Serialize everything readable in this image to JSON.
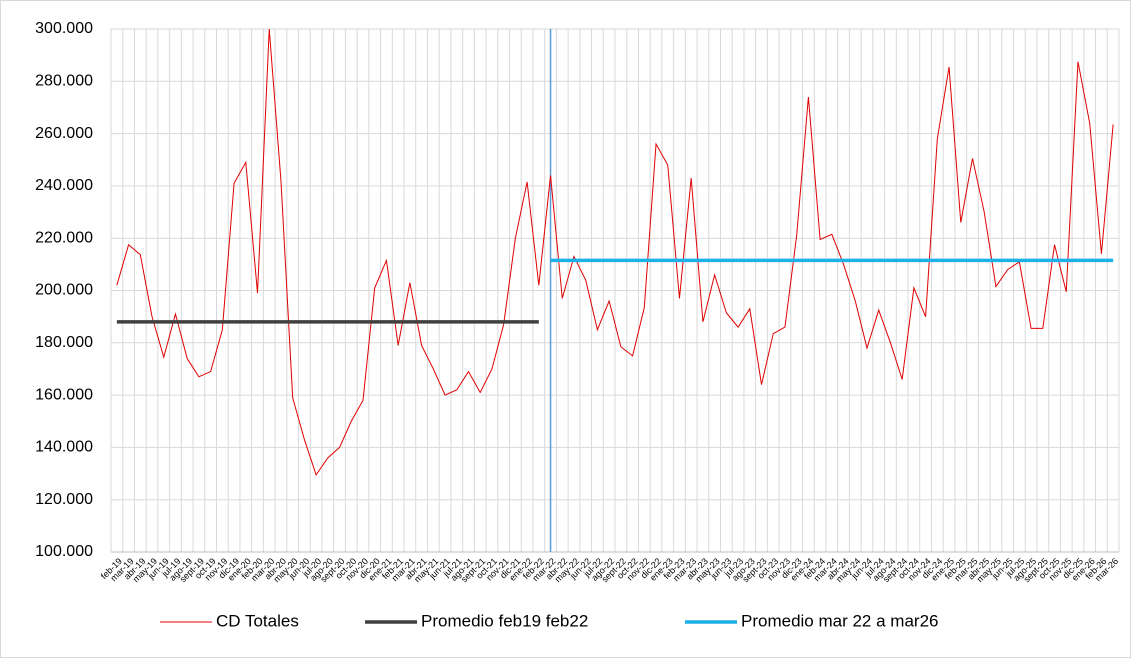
{
  "chart_data": {
    "type": "line",
    "categories": [
      "feb-19",
      "mar-19",
      "abr-19",
      "may-19",
      "jun-19",
      "jul-19",
      "ago-19",
      "sept-19",
      "oct-19",
      "nov-19",
      "dic-19",
      "ene-20",
      "feb-20",
      "mar-20",
      "abr-20",
      "may-20",
      "jun-20",
      "jul-20",
      "ago-20",
      "sept-20",
      "oct-20",
      "nov-20",
      "dic-20",
      "ene-21",
      "feb-21",
      "mar-21",
      "abr-21",
      "may-21",
      "jun-21",
      "jul-21",
      "ago-21",
      "sept-21",
      "oct-21",
      "nov-21",
      "dic-21",
      "ene-22",
      "feb-22",
      "mar-22",
      "abr-22",
      "may-22",
      "jun-22",
      "jul-22",
      "ago-22",
      "sept-22",
      "oct-22",
      "nov-22",
      "dic-22",
      "ene-23",
      "feb-23",
      "mar-23",
      "abr-23",
      "may-23",
      "jun-23",
      "jul-23",
      "ago-23",
      "sept-23",
      "oct-23",
      "nov-23",
      "dic-23",
      "ene-24",
      "feb-24",
      "mar-24",
      "abr-24",
      "may-24",
      "jun-24",
      "jul-24",
      "ago-24",
      "sept-24",
      "oct-24",
      "nov-24",
      "dic-24",
      "ene-25",
      "feb-25",
      "mar-25",
      "abr-25",
      "may-25",
      "jun-25",
      "jul-25",
      "ago-25",
      "sept-25",
      "oct-25",
      "nov-25",
      "dic-25",
      "ene-26",
      "feb-26",
      "mar-26"
    ],
    "series": [
      {
        "name": "CD Totales",
        "color": "#e00000",
        "values": [
          202000,
          217500,
          213700,
          190000,
          174500,
          191000,
          174000,
          167000,
          169000,
          185000,
          241000,
          249000,
          199000,
          300000,
          242000,
          159000,
          143000,
          129500,
          136000,
          140000,
          150000,
          158000,
          201000,
          211500,
          179000,
          203000,
          179000,
          170000,
          160000,
          162000,
          169000,
          161000,
          170000,
          187000,
          220000,
          241500,
          202000,
          244000,
          197000,
          213000,
          204000,
          185000,
          196000,
          178500,
          175000,
          193500,
          256000,
          248000,
          197000,
          243000,
          188000,
          206000,
          191500,
          186000,
          193000,
          164000,
          183500,
          186000,
          221000,
          274000,
          219500,
          221500,
          210000,
          196000,
          178000,
          192500,
          180000,
          166000,
          201000,
          190000,
          258000,
          285500,
          226000,
          250500,
          230000,
          201500,
          208000,
          211000,
          185500,
          185500,
          217500,
          199500,
          287500,
          264000,
          214000,
          263500
        ]
      },
      {
        "name": "Promedio feb19 feb22",
        "color": "#404040",
        "values": [
          188000,
          188000,
          188000,
          188000,
          188000,
          188000,
          188000,
          188000,
          188000,
          188000,
          188000,
          188000,
          188000,
          188000,
          188000,
          188000,
          188000,
          188000,
          188000,
          188000,
          188000,
          188000,
          188000,
          188000,
          188000,
          188000,
          188000,
          188000,
          188000,
          188000,
          188000,
          188000,
          188000,
          188000,
          188000,
          188000,
          188000,
          null,
          null,
          null,
          null,
          null,
          null,
          null,
          null,
          null,
          null,
          null,
          null,
          null,
          null,
          null,
          null,
          null,
          null,
          null,
          null,
          null,
          null,
          null,
          null,
          null,
          null,
          null,
          null,
          null,
          null,
          null,
          null,
          null,
          null,
          null,
          null,
          null,
          null,
          null,
          null,
          null,
          null,
          null,
          null,
          null,
          null,
          null,
          null,
          null
        ]
      },
      {
        "name": "Promedio mar 22 a mar26",
        "color": "#1cb0e8",
        "values": [
          null,
          null,
          null,
          null,
          null,
          null,
          null,
          null,
          null,
          null,
          null,
          null,
          null,
          null,
          null,
          null,
          null,
          null,
          null,
          null,
          null,
          null,
          null,
          null,
          null,
          null,
          null,
          null,
          null,
          null,
          null,
          null,
          null,
          null,
          null,
          null,
          null,
          211500,
          211500,
          211500,
          211500,
          211500,
          211500,
          211500,
          211500,
          211500,
          211500,
          211500,
          211500,
          211500,
          211500,
          211500,
          211500,
          211500,
          211500,
          211500,
          211500,
          211500,
          211500,
          211500,
          211500,
          211500,
          211500,
          211500,
          211500,
          211500,
          211500,
          211500,
          211500,
          211500,
          211500,
          211500,
          211500,
          211500,
          211500,
          211500,
          211500,
          211500,
          211500,
          211500,
          211500,
          211500,
          211500,
          211500,
          211500,
          211500
        ]
      }
    ],
    "ylim": [
      100000,
      300000
    ],
    "yticks": [
      {
        "value": 100000,
        "label": "100.000"
      },
      {
        "value": 120000,
        "label": "120.000"
      },
      {
        "value": 140000,
        "label": "140.000"
      },
      {
        "value": 160000,
        "label": "160.000"
      },
      {
        "value": 180000,
        "label": "180.000"
      },
      {
        "value": 200000,
        "label": "200.000"
      },
      {
        "value": 220000,
        "label": "220.000"
      },
      {
        "value": 240000,
        "label": "240.000"
      },
      {
        "value": 260000,
        "label": "260.000"
      },
      {
        "value": 280000,
        "label": "280.000"
      },
      {
        "value": 300000,
        "label": "300.000"
      }
    ],
    "grid": true,
    "legend": "bottom"
  }
}
